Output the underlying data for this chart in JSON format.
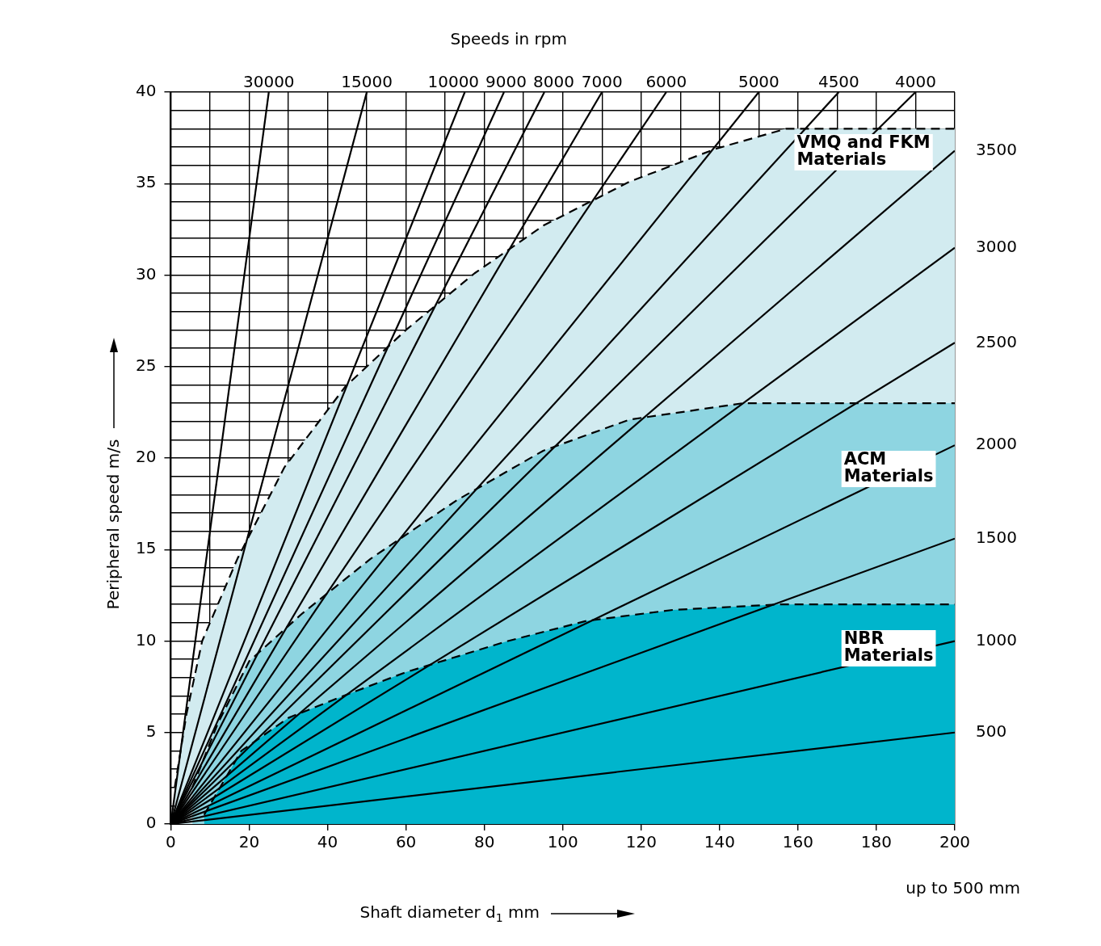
{
  "chart_data": {
    "type": "line",
    "xlabel": "Shaft diameter d$_{1}$ mm",
    "ylabel": "Peripheral speed m/s",
    "annotations": [
      "Speeds in rpm",
      "up to 500 mm"
    ],
    "xlim": [
      0,
      200
    ],
    "ylim": [
      0,
      40
    ],
    "xticks": [
      0,
      {
        "value": 10,
        "label": null
      },
      20,
      {
        "value": 30,
        "label": null
      },
      40,
      {
        "value": 50,
        "label": null
      },
      60,
      {
        "value": 70,
        "label": null
      },
      80,
      {
        "value": 90,
        "label": null
      },
      100,
      {
        "value": 110,
        "label": null
      },
      120,
      {
        "value": 130,
        "label": null
      },
      140,
      {
        "value": 150,
        "label": null
      },
      160,
      {
        "value": 170,
        "label": null
      },
      180,
      {
        "value": 190,
        "label": null
      },
      200
    ],
    "yticks": [
      0,
      {
        "value": 1,
        "label": null
      },
      {
        "value": 2,
        "label": null
      },
      {
        "value": 3,
        "label": null
      },
      {
        "value": 4,
        "label": null
      },
      5,
      {
        "value": 6,
        "label": null
      },
      {
        "value": 7,
        "label": null
      },
      {
        "value": 8,
        "label": null
      },
      {
        "value": 9,
        "label": null
      },
      10,
      {
        "value": 11,
        "label": null
      },
      {
        "value": 12,
        "label": null
      },
      {
        "value": 13,
        "label": null
      },
      {
        "value": 14,
        "label": null
      },
      15,
      {
        "value": 16,
        "label": null
      },
      {
        "value": 17,
        "label": null
      },
      {
        "value": 18,
        "label": null
      },
      {
        "value": 19,
        "label": null
      },
      20,
      {
        "value": 21,
        "label": null
      },
      {
        "value": 22,
        "label": null
      },
      {
        "value": 23,
        "label": null
      },
      {
        "value": 24,
        "label": null
      },
      25,
      {
        "value": 26,
        "label": null
      },
      {
        "value": 27,
        "label": null
      },
      {
        "value": 28,
        "label": null
      },
      {
        "value": 29,
        "label": null
      },
      30,
      {
        "value": 31,
        "label": null
      },
      {
        "value": 32,
        "label": null
      },
      {
        "value": 33,
        "label": null
      },
      {
        "value": 34,
        "label": null
      },
      35,
      {
        "value": 36,
        "label": null
      },
      {
        "value": 37,
        "label": null
      },
      {
        "value": 38,
        "label": null
      },
      {
        "value": 39,
        "label": null
      },
      40
    ],
    "grid": true,
    "marker": "none",
    "series": [
      {
        "name": "VMQ and FKM Materials",
        "type": "area",
        "color": "#d2ebf0",
        "line_style": "dashed",
        "x": [
          1,
          4,
          8,
          13,
          17,
          29,
          44.5,
          60,
          77.5,
          95,
          117,
          139,
          157,
          200
        ],
        "values": [
          2,
          6,
          10,
          12.5,
          14.5,
          19.5,
          23.9,
          27,
          30.1,
          32.7,
          35.1,
          36.9,
          38,
          38
        ]
      },
      {
        "name": "ACM Materials",
        "type": "area",
        "color": "#8ed5e1",
        "line_style": "dashed",
        "x": [
          5.5,
          12,
          20,
          33.5,
          51,
          73,
          95,
          117,
          146,
          200
        ],
        "values": [
          2,
          5.5,
          8.9,
          11.5,
          14.5,
          17.7,
          20.4,
          22.1,
          23,
          23
        ]
      },
      {
        "name": "NBR Materials",
        "type": "area",
        "color": "#00b5cc",
        "line_style": "dashed",
        "x": [
          8.5,
          18,
          30,
          44,
          60,
          86,
          106,
          128,
          155,
          200
        ],
        "values": [
          0.5,
          4,
          5.8,
          7,
          8.3,
          10,
          11.1,
          11.7,
          12,
          12
        ]
      },
      {
        "name": "30000",
        "type": "line",
        "color": "#000000",
        "x": [
          0,
          25
        ],
        "values": [
          0,
          40
        ]
      },
      {
        "name": "15000",
        "type": "line",
        "color": "#000000",
        "x": [
          0,
          50
        ],
        "values": [
          0,
          40
        ]
      },
      {
        "name": "10000",
        "type": "line",
        "color": "#000000",
        "x": [
          0,
          75
        ],
        "values": [
          0,
          40
        ]
      },
      {
        "name": "9000",
        "type": "line",
        "color": "#000000",
        "x": [
          0,
          85
        ],
        "values": [
          0,
          40
        ]
      },
      {
        "name": "8000",
        "type": "line",
        "color": "#000000",
        "x": [
          0,
          95.3
        ],
        "values": [
          0,
          40
        ]
      },
      {
        "name": "7000",
        "type": "line",
        "color": "#000000",
        "x": [
          0,
          110
        ],
        "values": [
          0,
          40
        ]
      },
      {
        "name": "6000",
        "type": "line",
        "color": "#000000",
        "x": [
          0,
          126.4
        ],
        "values": [
          0,
          40
        ]
      },
      {
        "name": "5000",
        "type": "line",
        "color": "#000000",
        "x": [
          0,
          150
        ],
        "values": [
          0,
          40
        ]
      },
      {
        "name": "4500",
        "type": "line",
        "color": "#000000",
        "x": [
          0,
          170.4
        ],
        "values": [
          0,
          40
        ]
      },
      {
        "name": "4000",
        "type": "line",
        "color": "#000000",
        "x": [
          0,
          190
        ],
        "values": [
          0,
          40
        ]
      },
      {
        "name": "3500",
        "type": "line",
        "color": "#000000",
        "x": [
          0,
          200
        ],
        "values": [
          0,
          36.8
        ]
      },
      {
        "name": "3000",
        "type": "line",
        "color": "#000000",
        "x": [
          0,
          200
        ],
        "values": [
          0,
          31.5
        ]
      },
      {
        "name": "2500",
        "type": "line",
        "color": "#000000",
        "x": [
          0,
          200
        ],
        "values": [
          0,
          26.3
        ]
      },
      {
        "name": "2000",
        "type": "line",
        "color": "#000000",
        "x": [
          0,
          200
        ],
        "values": [
          0,
          20.7
        ]
      },
      {
        "name": "1500",
        "type": "line",
        "color": "#000000",
        "x": [
          0,
          200
        ],
        "values": [
          0,
          15.6
        ]
      },
      {
        "name": "1000",
        "type": "line",
        "color": "#000000",
        "x": [
          0,
          200
        ],
        "values": [
          0,
          10
        ]
      },
      {
        "name": "500",
        "type": "line",
        "color": "#000000",
        "x": [
          0,
          200
        ],
        "values": [
          0,
          5
        ]
      }
    ]
  }
}
